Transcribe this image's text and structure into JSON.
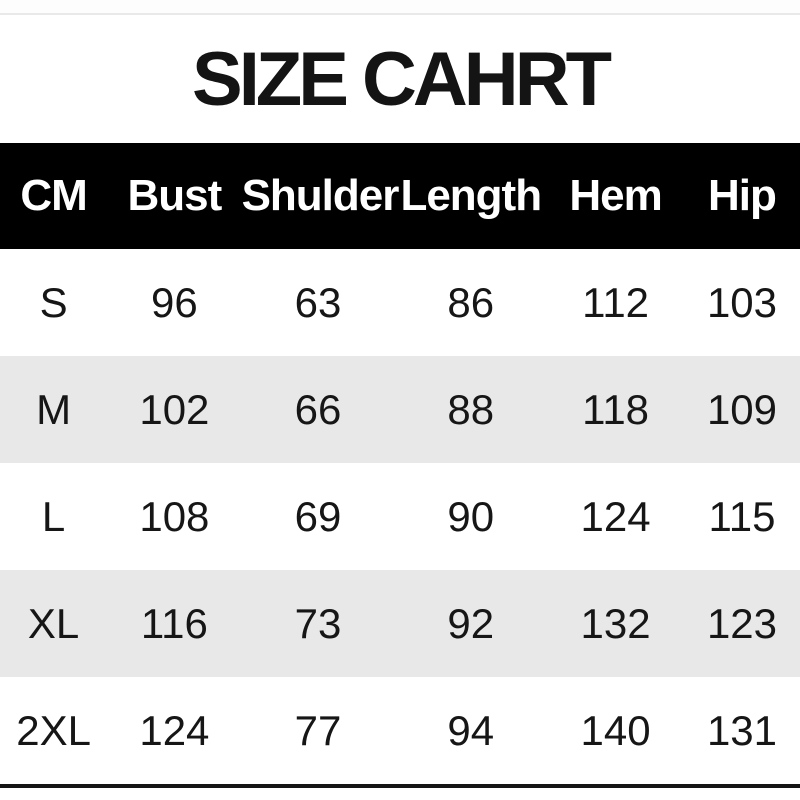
{
  "page": {
    "title": "SIZE CAHRT"
  },
  "chart_data": {
    "type": "table",
    "title": "SIZE CAHRT",
    "unit": "CM",
    "columns": [
      "CM",
      "Bust",
      "Shulder",
      "Length",
      "Hem",
      "Hip"
    ],
    "rows": [
      [
        "S",
        "96",
        "63",
        "86",
        "112",
        "103"
      ],
      [
        "M",
        "102",
        "66",
        "88",
        "118",
        "109"
      ],
      [
        "L",
        "108",
        "69",
        "90",
        "124",
        "115"
      ],
      [
        "XL",
        "116",
        "73",
        "92",
        "132",
        "123"
      ],
      [
        "2XL",
        "124",
        "77",
        "94",
        "140",
        "131"
      ]
    ]
  },
  "colors": {
    "header_bg": "#000000",
    "header_text": "#ffffff",
    "row_alt_bg": "#e8e8e8",
    "title_text": "#141414",
    "top_rule": "#e9e9e9",
    "bottom_rule": "#151515"
  }
}
